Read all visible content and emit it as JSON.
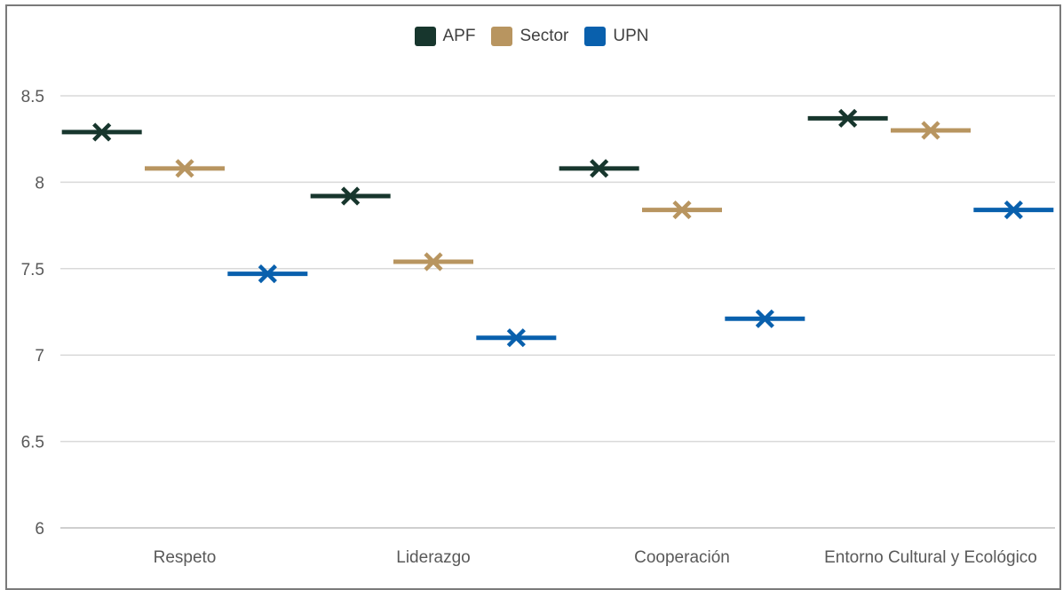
{
  "chart_data": {
    "type": "scatter",
    "title": "",
    "xlabel": "",
    "ylabel": "",
    "categories": [
      "Respeto",
      "Liderazgo",
      "Cooperación",
      "Entorno Cultural y Ecológico"
    ],
    "ylim": [
      6,
      8.5
    ],
    "yticks": [
      "6",
      "6.5",
      "7",
      "7.5",
      "8",
      "8.5"
    ],
    "grid": true,
    "legend_position": "top",
    "series": [
      {
        "name": "APF",
        "color": "#17362d",
        "values": [
          8.29,
          7.92,
          8.08,
          8.37
        ]
      },
      {
        "name": "Sector",
        "color": "#b89560",
        "values": [
          8.08,
          7.54,
          7.84,
          8.3
        ]
      },
      {
        "name": "UPN",
        "color": "#0960ad",
        "values": [
          7.47,
          7.1,
          7.21,
          7.84
        ]
      }
    ]
  }
}
